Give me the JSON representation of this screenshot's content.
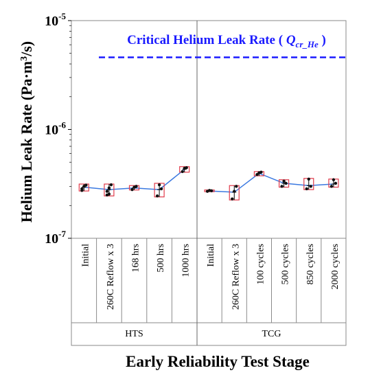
{
  "chart_data": {
    "type": "scatter",
    "title": "",
    "ylabel_main": "Helium Leak Rate (Pa·m",
    "ylabel_sup": "3",
    "ylabel_tail": "/s)",
    "xlabel": "Early Reliability Test Stage",
    "y_scale": "log",
    "ylim": [
      1e-07,
      1e-05
    ],
    "y_ticks": [
      {
        "base": "10",
        "exp": "-5"
      },
      {
        "base": "10",
        "exp": "-6"
      },
      {
        "base": "10",
        "exp": "-7"
      }
    ],
    "y_tick_values": [
      1e-05,
      1e-06,
      1e-07
    ],
    "reference_line": {
      "label_main": "Critical Helium Leak Rate ( ",
      "label_q": "Q",
      "label_sub": "cr_He",
      "label_close": " )",
      "value": 4.6e-06,
      "color": "#1a1aff",
      "style": "dashed"
    },
    "groups": [
      {
        "name": "HTS",
        "stages": [
          {
            "label": "Initial",
            "mean": 2.95e-07,
            "low": 2.72e-07,
            "high": 3.15e-07,
            "points": [
              2.75e-07,
              3e-07,
              3.08e-07,
              2.85e-07
            ]
          },
          {
            "label": "260C Reflow x 3",
            "mean": 2.8e-07,
            "low": 2.45e-07,
            "high": 3.15e-07,
            "points": [
              2.5e-07,
              2.9e-07,
              3.1e-07,
              2.7e-07,
              2.55e-07
            ]
          },
          {
            "label": "168 hrs",
            "mean": 2.9e-07,
            "low": 2.78e-07,
            "high": 3.05e-07,
            "points": [
              2.8e-07,
              2.95e-07,
              3e-07
            ]
          },
          {
            "label": "500 hrs",
            "mean": 2.8e-07,
            "low": 2.4e-07,
            "high": 3.2e-07,
            "points": [
              2.45e-07,
              3.1e-07,
              2.85e-07
            ]
          },
          {
            "label": "1000 hrs",
            "mean": 4.3e-07,
            "low": 4.05e-07,
            "high": 4.55e-07,
            "points": [
              4.1e-07,
              4.4e-07,
              4.45e-07
            ]
          }
        ]
      },
      {
        "name": "TCG",
        "stages": [
          {
            "label": "Initial",
            "mean": 2.72e-07,
            "low": 2.68e-07,
            "high": 2.78e-07,
            "points": [
              2.7e-07,
              2.75e-07,
              2.73e-07
            ]
          },
          {
            "label": "260C Reflow x 3",
            "mean": 2.65e-07,
            "low": 2.25e-07,
            "high": 3.05e-07,
            "points": [
              2.3e-07,
              2.7e-07,
              3e-07
            ]
          },
          {
            "label": "100 cycles",
            "mean": 3.95e-07,
            "low": 3.75e-07,
            "high": 4.1e-07,
            "points": [
              3.85e-07,
              4e-07,
              4.05e-07
            ]
          },
          {
            "label": "500 cycles",
            "mean": 3.2e-07,
            "low": 2.95e-07,
            "high": 3.45e-07,
            "points": [
              3e-07,
              3.35e-07,
              3.2e-07
            ]
          },
          {
            "label": "850 cycles",
            "mean": 3.05e-07,
            "low": 2.8e-07,
            "high": 3.55e-07,
            "points": [
              2.85e-07,
              3.5e-07,
              3e-07
            ]
          },
          {
            "label": "2000 cycles",
            "mean": 3.15e-07,
            "low": 2.95e-07,
            "high": 3.5e-07,
            "points": [
              3e-07,
              3.45e-07,
              3.2e-07
            ]
          }
        ]
      }
    ],
    "grid": false,
    "legend": "none",
    "colors": {
      "line": "#3a78e0",
      "box": "#e03a4a",
      "point": "#111111",
      "frame": "#8a8a8a",
      "divider": "#666666"
    }
  }
}
